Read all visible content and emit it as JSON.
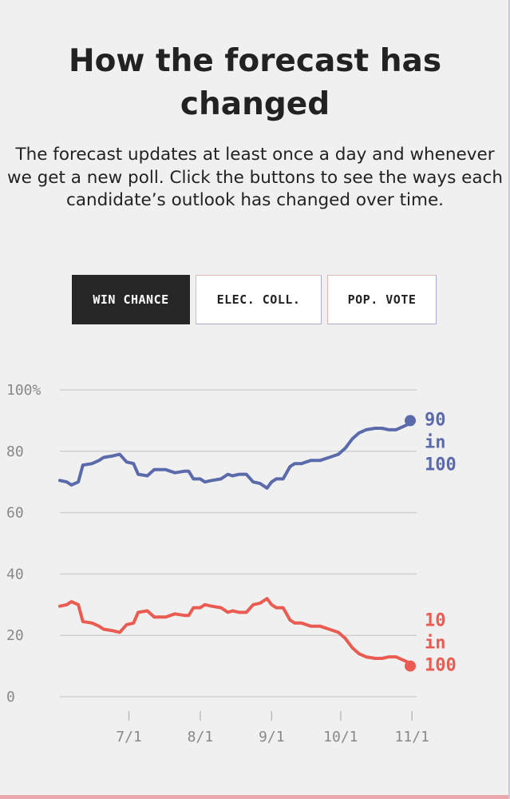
{
  "header": {
    "title": "How the forecast has changed",
    "intro": "The forecast updates at least once a day and whenever we get a new poll. Click the buttons to see the ways each candidate’s outlook has changed over time."
  },
  "toggles": {
    "win_chance": "WIN CHANCE",
    "elec_coll": "ELEC. COLL.",
    "pop_vote": "POP. VOTE",
    "active": "win_chance"
  },
  "colors": {
    "blue": "#5a6aab",
    "red": "#ea5c52",
    "grid": "#cfcfcf",
    "axis_text": "#888888"
  },
  "chart_data": {
    "type": "line",
    "title": "",
    "xlabel": "",
    "ylabel": "",
    "ylim": [
      0,
      100
    ],
    "y_ticks": [
      "0",
      "20",
      "40",
      "60",
      "80",
      "100%"
    ],
    "y_tick_values": [
      0,
      20,
      40,
      60,
      80,
      100
    ],
    "x_ticks": [
      "7/1",
      "8/1",
      "9/1",
      "10/1",
      "11/1"
    ],
    "x_tick_dates": [
      "2020-07-01",
      "2020-08-01",
      "2020-09-01",
      "2020-10-01",
      "2020-11-01"
    ],
    "xlim": [
      "2020-06-01",
      "2020-11-03"
    ],
    "grid": true,
    "series": [
      {
        "color": "#5a6aab",
        "end_label": [
          "90",
          "in",
          "100"
        ],
        "end_value": 90,
        "x": [
          "2020-06-01",
          "2020-06-04",
          "2020-06-06",
          "2020-06-09",
          "2020-06-11",
          "2020-06-15",
          "2020-06-18",
          "2020-06-20",
          "2020-06-24",
          "2020-06-27",
          "2020-06-30",
          "2020-07-03",
          "2020-07-05",
          "2020-07-09",
          "2020-07-12",
          "2020-07-14",
          "2020-07-17",
          "2020-07-21",
          "2020-07-25",
          "2020-07-27",
          "2020-07-29",
          "2020-08-01",
          "2020-08-03",
          "2020-08-06",
          "2020-08-10",
          "2020-08-13",
          "2020-08-15",
          "2020-08-18",
          "2020-08-21",
          "2020-08-24",
          "2020-08-27",
          "2020-08-30",
          "2020-09-01",
          "2020-09-03",
          "2020-09-06",
          "2020-09-09",
          "2020-09-11",
          "2020-09-14",
          "2020-09-18",
          "2020-09-22",
          "2020-09-26",
          "2020-09-30",
          "2020-10-03",
          "2020-10-06",
          "2020-10-09",
          "2020-10-12",
          "2020-10-16",
          "2020-10-19",
          "2020-10-22",
          "2020-10-25",
          "2020-10-28",
          "2020-10-31"
        ],
        "values": [
          70.5,
          70,
          69,
          70,
          75.5,
          76,
          77,
          78,
          78.5,
          79,
          76.5,
          76,
          72.5,
          72,
          74,
          74,
          74,
          73,
          73.5,
          73.5,
          71,
          71,
          70,
          70.5,
          71,
          72.5,
          72,
          72.5,
          72.5,
          70,
          69.5,
          68,
          70,
          71,
          71,
          75,
          76,
          76,
          77,
          77,
          78,
          79,
          81,
          84,
          86,
          87,
          87.5,
          87.5,
          87,
          87,
          88,
          89
        ]
      },
      {
        "color": "#ea5c52",
        "end_label": [
          "10",
          "in",
          "100"
        ],
        "end_value": 10,
        "x": [
          "2020-06-01",
          "2020-06-04",
          "2020-06-06",
          "2020-06-09",
          "2020-06-11",
          "2020-06-15",
          "2020-06-18",
          "2020-06-20",
          "2020-06-24",
          "2020-06-27",
          "2020-06-30",
          "2020-07-03",
          "2020-07-05",
          "2020-07-09",
          "2020-07-12",
          "2020-07-14",
          "2020-07-17",
          "2020-07-21",
          "2020-07-25",
          "2020-07-27",
          "2020-07-29",
          "2020-08-01",
          "2020-08-03",
          "2020-08-06",
          "2020-08-10",
          "2020-08-13",
          "2020-08-15",
          "2020-08-18",
          "2020-08-21",
          "2020-08-24",
          "2020-08-27",
          "2020-08-30",
          "2020-09-01",
          "2020-09-03",
          "2020-09-06",
          "2020-09-09",
          "2020-09-11",
          "2020-09-14",
          "2020-09-18",
          "2020-09-22",
          "2020-09-26",
          "2020-09-30",
          "2020-10-03",
          "2020-10-06",
          "2020-10-09",
          "2020-10-12",
          "2020-10-16",
          "2020-10-19",
          "2020-10-22",
          "2020-10-25",
          "2020-10-28",
          "2020-10-31"
        ],
        "values": [
          29.5,
          30,
          31,
          30,
          24.5,
          24,
          23,
          22,
          21.5,
          21,
          23.5,
          24,
          27.5,
          28,
          26,
          26,
          26,
          27,
          26.5,
          26.5,
          29,
          29,
          30,
          29.5,
          29,
          27.5,
          28,
          27.5,
          27.5,
          30,
          30.5,
          32,
          30,
          29,
          29,
          25,
          24,
          24,
          23,
          23,
          22,
          21,
          19,
          16,
          14,
          13,
          12.5,
          12.5,
          13,
          13,
          12,
          11
        ]
      }
    ]
  }
}
